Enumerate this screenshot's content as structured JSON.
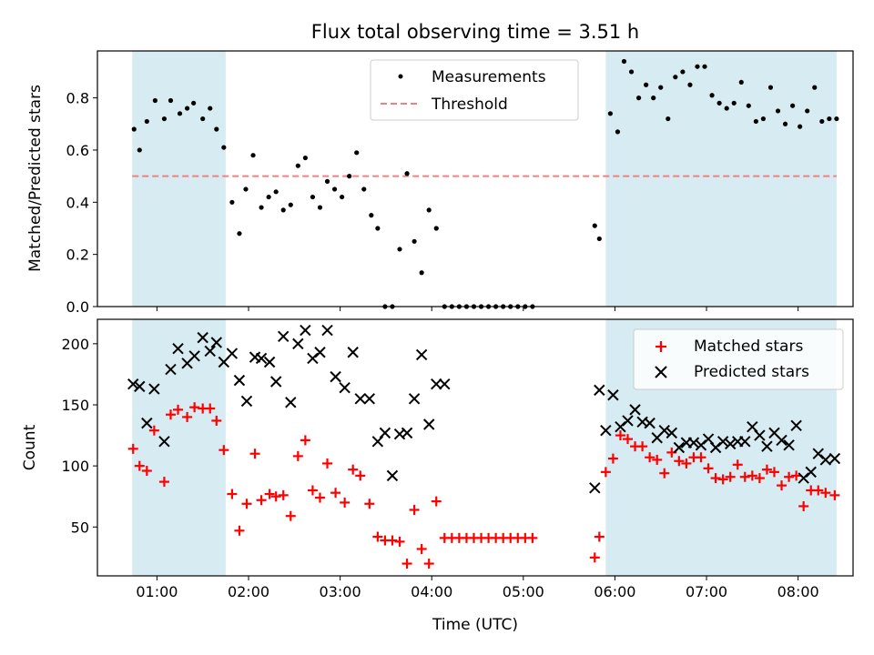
{
  "figure": {
    "title": "Flux total observing time = 3.51 h",
    "x_tick_labels": [
      "01:00",
      "02:00",
      "03:00",
      "04:00",
      "05:00",
      "06:00",
      "07:00",
      "08:00"
    ]
  },
  "chart_data": [
    {
      "type": "scatter",
      "title": "Flux total observing time = 3.51 h",
      "xlabel": "",
      "ylabel": "Matched/Predicted stars",
      "x_unit": "hours UTC",
      "xlim": [
        0.35,
        8.6
      ],
      "ylim": [
        0.0,
        0.98
      ],
      "yticks": [
        0.0,
        0.2,
        0.4,
        0.6,
        0.8
      ],
      "y_tick_labels": [
        "0.0",
        "0.2",
        "0.4",
        "0.6",
        "0.8"
      ],
      "legend_position": "top-center",
      "shaded_regions": [
        {
          "x0": 0.73,
          "x1": 1.75,
          "color": "#add8e6"
        },
        {
          "x0": 5.9,
          "x1": 8.42,
          "color": "#add8e6"
        }
      ],
      "threshold": {
        "name": "Threshold",
        "y": 0.5,
        "x_range": [
          0.73,
          8.42
        ],
        "color": "#f08080",
        "style": "dashed"
      },
      "series": [
        {
          "name": "Measurements",
          "marker": "dot",
          "color": "#000000",
          "x": [
            0.75,
            0.81,
            0.89,
            0.98,
            1.08,
            1.15,
            1.25,
            1.33,
            1.4,
            1.5,
            1.58,
            1.65,
            1.73,
            1.82,
            1.9,
            1.97,
            2.05,
            2.14,
            2.22,
            2.3,
            2.38,
            2.46,
            2.54,
            2.62,
            2.7,
            2.78,
            2.86,
            2.94,
            3.02,
            3.1,
            3.18,
            3.26,
            3.34,
            3.41,
            3.49,
            3.57,
            3.65,
            3.73,
            3.81,
            3.89,
            3.97,
            4.05,
            4.14,
            4.22,
            4.3,
            4.38,
            4.46,
            4.54,
            4.62,
            4.7,
            4.78,
            4.86,
            4.94,
            5.02,
            5.1,
            5.78,
            5.83,
            5.95,
            6.03,
            6.1,
            6.18,
            6.26,
            6.34,
            6.42,
            6.5,
            6.58,
            6.66,
            6.74,
            6.82,
            6.9,
            6.98,
            7.06,
            7.14,
            7.22,
            7.3,
            7.38,
            7.46,
            7.54,
            7.62,
            7.7,
            7.78,
            7.86,
            7.94,
            8.02,
            8.1,
            8.18,
            8.26,
            8.34,
            8.42
          ],
          "y": [
            0.68,
            0.6,
            0.71,
            0.79,
            0.72,
            0.79,
            0.74,
            0.76,
            0.78,
            0.72,
            0.76,
            0.68,
            0.61,
            0.4,
            0.28,
            0.45,
            0.58,
            0.38,
            0.42,
            0.44,
            0.37,
            0.39,
            0.54,
            0.57,
            0.42,
            0.38,
            0.48,
            0.45,
            0.42,
            0.5,
            0.59,
            0.45,
            0.35,
            0.3,
            0.0,
            0.0,
            0.22,
            0.51,
            0.25,
            0.13,
            0.37,
            0.3,
            0.0,
            0.0,
            0.0,
            0.0,
            0.0,
            0.0,
            0.0,
            0.0,
            0.0,
            0.0,
            0.0,
            0.0,
            0.0,
            0.31,
            0.26,
            0.74,
            0.67,
            0.94,
            0.9,
            0.8,
            0.85,
            0.8,
            0.84,
            0.72,
            0.88,
            0.9,
            0.85,
            0.92,
            0.92,
            0.81,
            0.78,
            0.76,
            0.78,
            0.86,
            0.77,
            0.71,
            0.72,
            0.84,
            0.75,
            0.7,
            0.77,
            0.69,
            0.75,
            0.84,
            0.71,
            0.72,
            0.72
          ]
        }
      ]
    },
    {
      "type": "scatter",
      "title": "",
      "xlabel": "Time (UTC)",
      "ylabel": "Count",
      "x_unit": "hours UTC",
      "xlim": [
        0.35,
        8.6
      ],
      "ylim": [
        10,
        220
      ],
      "yticks": [
        50,
        100,
        150,
        200
      ],
      "y_tick_labels": [
        "50",
        "100",
        "150",
        "200"
      ],
      "legend_position": "top-right",
      "shaded_regions": [
        {
          "x0": 0.73,
          "x1": 1.75,
          "color": "#add8e6"
        },
        {
          "x0": 5.9,
          "x1": 8.42,
          "color": "#add8e6"
        }
      ],
      "series": [
        {
          "name": "Matched stars",
          "marker": "plus",
          "color": "#ff0000",
          "x": [
            0.74,
            0.81,
            0.89,
            0.97,
            1.08,
            1.15,
            1.23,
            1.33,
            1.41,
            1.5,
            1.58,
            1.65,
            1.73,
            1.82,
            1.9,
            1.98,
            2.07,
            2.14,
            2.23,
            2.3,
            2.38,
            2.46,
            2.54,
            2.62,
            2.7,
            2.78,
            2.86,
            2.95,
            3.05,
            3.14,
            3.22,
            3.32,
            3.41,
            3.49,
            3.57,
            3.65,
            3.73,
            3.81,
            3.89,
            3.97,
            4.05,
            4.14,
            4.22,
            4.3,
            4.38,
            4.46,
            4.54,
            4.62,
            4.7,
            4.78,
            4.86,
            4.94,
            5.02,
            5.1,
            5.78,
            5.83,
            5.9,
            5.98,
            6.06,
            6.14,
            6.22,
            6.3,
            6.38,
            6.46,
            6.54,
            6.62,
            6.7,
            6.78,
            6.86,
            6.94,
            7.02,
            7.1,
            7.18,
            7.26,
            7.34,
            7.42,
            7.5,
            7.58,
            7.66,
            7.74,
            7.82,
            7.9,
            7.98,
            8.06,
            8.14,
            8.22,
            8.3,
            8.4
          ],
          "y": [
            114,
            100,
            96,
            129,
            87,
            142,
            146,
            140,
            148,
            147,
            147,
            137,
            113,
            77,
            47,
            69,
            110,
            72,
            77,
            75,
            76,
            59,
            108,
            121,
            80,
            74,
            102,
            78,
            70,
            97,
            92,
            69,
            42,
            39,
            39,
            38,
            20,
            64,
            32,
            20,
            71,
            41,
            41,
            41,
            41,
            41,
            41,
            41,
            41,
            41,
            41,
            41,
            41,
            41,
            25,
            42,
            95,
            106,
            125,
            122,
            116,
            116,
            107,
            105,
            94,
            111,
            104,
            102,
            107,
            107,
            98,
            90,
            89,
            91,
            101,
            91,
            92,
            90,
            97,
            95,
            84,
            91,
            92,
            67,
            80,
            80,
            78,
            76
          ]
        },
        {
          "name": "Predicted stars",
          "marker": "x",
          "color": "#000000",
          "x": [
            0.74,
            0.81,
            0.89,
            0.97,
            1.08,
            1.15,
            1.23,
            1.33,
            1.41,
            1.5,
            1.58,
            1.65,
            1.73,
            1.82,
            1.9,
            1.98,
            2.07,
            2.14,
            2.23,
            2.3,
            2.38,
            2.46,
            2.54,
            2.62,
            2.7,
            2.78,
            2.86,
            2.95,
            3.05,
            3.14,
            3.22,
            3.32,
            3.41,
            3.49,
            3.57,
            3.65,
            3.73,
            3.81,
            3.89,
            3.97,
            4.05,
            4.14,
            5.78,
            5.83,
            5.9,
            5.98,
            6.06,
            6.14,
            6.22,
            6.3,
            6.38,
            6.46,
            6.54,
            6.62,
            6.7,
            6.78,
            6.86,
            6.94,
            7.02,
            7.1,
            7.18,
            7.26,
            7.34,
            7.42,
            7.5,
            7.58,
            7.66,
            7.74,
            7.82,
            7.9,
            7.98,
            8.06,
            8.14,
            8.22,
            8.3,
            8.4
          ],
          "y": [
            167,
            165,
            135,
            163,
            120,
            179,
            196,
            184,
            190,
            205,
            194,
            201,
            185,
            192,
            170,
            153,
            189,
            188,
            185,
            169,
            206,
            152,
            200,
            211,
            188,
            193,
            211,
            173,
            164,
            193,
            155,
            155,
            120,
            127,
            92,
            126,
            127,
            155,
            191,
            134,
            167,
            167,
            82,
            162,
            129,
            158,
            132,
            137,
            146,
            136,
            135,
            123,
            129,
            127,
            115,
            119,
            119,
            117,
            122,
            115,
            120,
            118,
            120,
            120,
            132,
            125,
            116,
            127,
            121,
            117,
            133,
            90,
            95,
            110,
            105,
            106
          ]
        }
      ]
    }
  ]
}
